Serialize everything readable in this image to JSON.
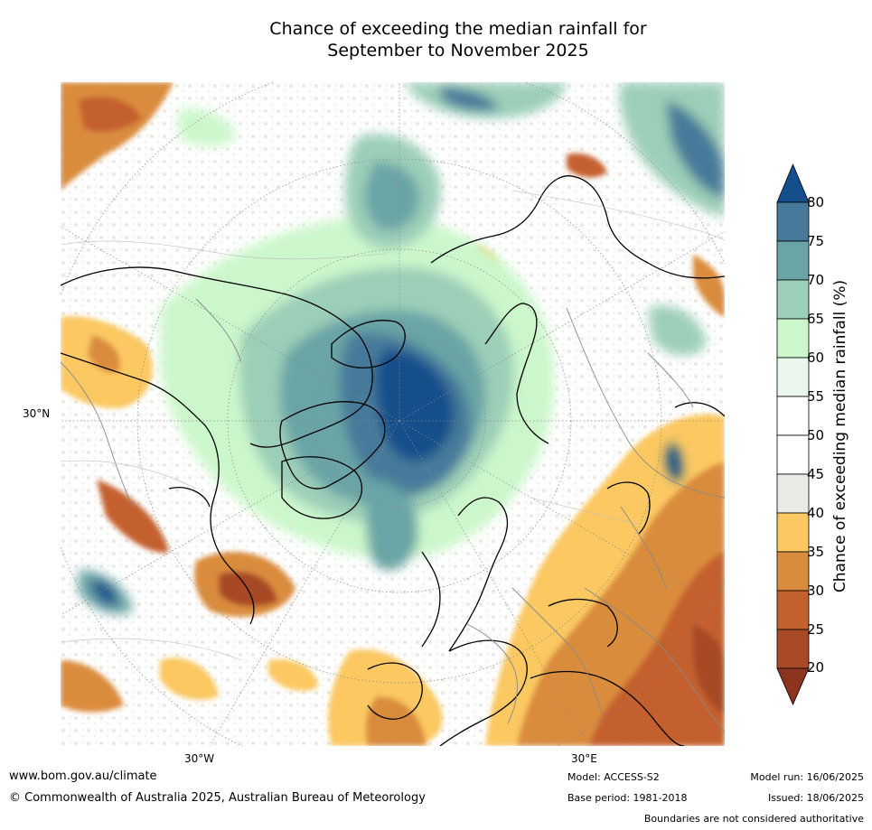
{
  "title_line1": "Chance of exceeding the median rainfall for",
  "title_line2": "September to November 2025",
  "map": {
    "projection": "north-polar-stereographic",
    "lat_label": "30°N",
    "lon_labels": [
      "30°W",
      "30°E"
    ]
  },
  "colorbar": {
    "label": "Chance of exceeding median rainfall (%)",
    "ticks": [
      "20",
      "25",
      "30",
      "35",
      "40",
      "45",
      "50",
      "55",
      "60",
      "65",
      "70",
      "75",
      "80"
    ],
    "colors": {
      "below_20": "#8c3420",
      "20_25": "#a84a26",
      "25_30": "#c4612f",
      "30_35": "#da8c3e",
      "35_40": "#fbc862",
      "40_45": "#ebe9e4",
      "45_55": "#ffffff",
      "55_60": "#ebf7ec",
      "60_65": "#ccf7cc",
      "65_70": "#9ccfb8",
      "70_75": "#6ba4a6",
      "75_80": "#477a9a",
      "above_80": "#144f8c"
    }
  },
  "footer": {
    "website": "www.bom.gov.au/climate",
    "copyright": "© Commonwealth of Australia 2025, Australian Bureau of Meteorology",
    "model": "Model: ACCESS-S2",
    "base_period": "Base period: 1981-2018",
    "model_run": "Model run: 16/06/2025",
    "issued": "Issued: 18/06/2025",
    "disclaimer": "Boundaries are not considered authoritative"
  }
}
